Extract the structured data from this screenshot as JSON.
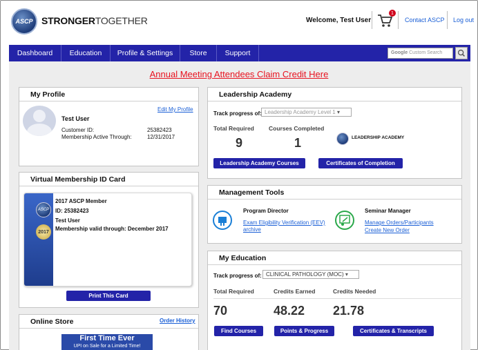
{
  "header": {
    "logo_text": "ASCP",
    "brand_bold": "STRONGER",
    "brand_rest": "TOGETHER",
    "welcome": "Welcome, Test User",
    "cart_count": "1",
    "contact": "Contact ASCP",
    "logout": "Log out"
  },
  "nav": {
    "items": [
      "Dashboard",
      "Education",
      "Profile & Settings",
      "Store",
      "Support"
    ],
    "search_placeholder": "Custom Search",
    "search_brand": "Google"
  },
  "claim_link": "Annual Meeting Attendees Claim Credit Here",
  "profile": {
    "title": "My Profile",
    "edit_link": "Edit My Profile",
    "name": "Test User",
    "customer_id_label": "Customer ID:",
    "customer_id": "25382423",
    "membership_label": "Membership Active Through:",
    "membership_date": "12/31/2017"
  },
  "id_card": {
    "title": "Virtual Membership ID Card",
    "logo_text": "ASCP",
    "year": "2017",
    "line1": "2017 ASCP Member",
    "line2": "ID: 25382423",
    "line3": "Test User",
    "line4": "Membership valid through: December 2017",
    "print_button": "Print This Card"
  },
  "store": {
    "title": "Online Store",
    "order_history": "Order History",
    "banner_title": "First Time Ever",
    "banner_sub": "UPI on Sale for a Limited Time!"
  },
  "leadership": {
    "title": "Leadership Academy",
    "track_label": "Track progress of:",
    "track_value": "Leadership Academy Level 1",
    "total_label": "Total Required",
    "total_value": "9",
    "completed_label": "Courses Completed",
    "completed_value": "1",
    "logo_text": "LEADERSHIP ACADEMY",
    "courses_button": "Leadership Academy Courses",
    "certificates_button": "Certificates of Completion"
  },
  "management": {
    "title": "Management Tools",
    "director_title": "Program Director",
    "director_link1": "Exam Eligibility Verification (EEV)",
    "director_link2": "archive",
    "seminar_title": "Seminar Manager",
    "seminar_link1": "Manage Orders/Participants",
    "seminar_link2": "Create New Order",
    "director_icon_color": "#1a7fd6",
    "seminar_icon_color": "#2aa84a"
  },
  "education": {
    "title": "My Education",
    "track_label": "Track progress of:",
    "track_value": "CLINICAL PATHOLOGY (MOC)",
    "total_label": "Total Required",
    "total_value": "70",
    "earned_label": "Credits Earned",
    "earned_value": "48.22",
    "needed_label": "Credits Needed",
    "needed_value": "21.78",
    "find_button": "Find Courses",
    "points_button": "Points & Progress",
    "certs_button": "Certificates & Transcripts"
  },
  "colors": {
    "nav_bg": "#2323a8",
    "claim_red": "#e8121f",
    "link_blue": "#1a5fd6"
  }
}
